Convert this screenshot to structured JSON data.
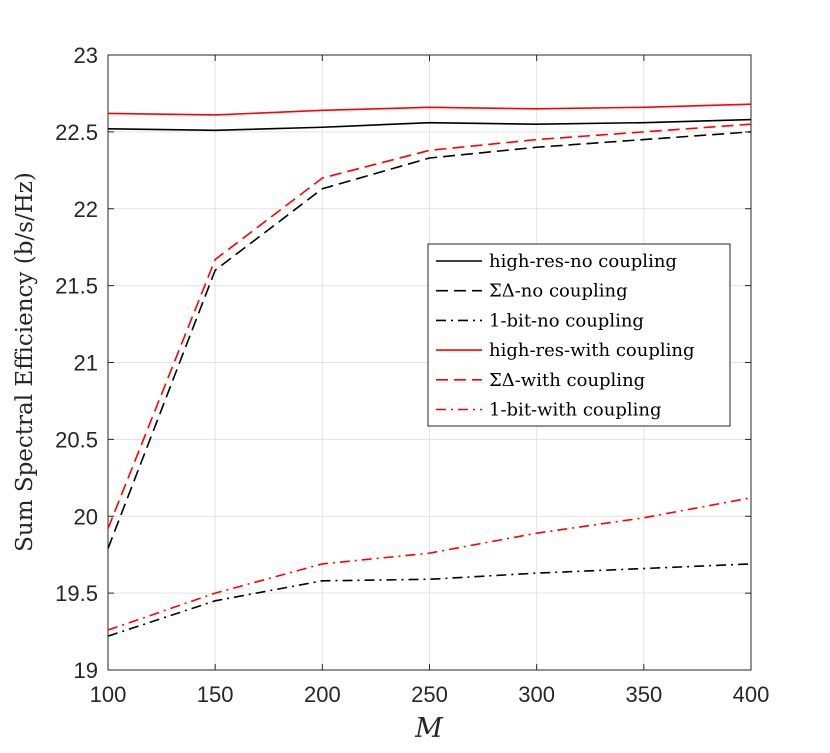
{
  "chart_data": {
    "type": "line",
    "title": "",
    "xlabel": "M",
    "ylabel": "Sum Spectral Efficiency (b/s/Hz)",
    "xlim": [
      100,
      400
    ],
    "ylim": [
      19,
      23
    ],
    "grid": true,
    "legend_position": "center-right",
    "x": [
      100,
      150,
      200,
      250,
      300,
      350,
      400
    ],
    "x_tick_labels": [
      "100",
      "150",
      "200",
      "250",
      "300",
      "350",
      "400"
    ],
    "y_tick_labels": [
      "19",
      "19.5",
      "20",
      "20.5",
      "21",
      "21.5",
      "22",
      "22.5",
      "23"
    ],
    "series": [
      {
        "name": "high-res-no coupling",
        "color": "#000000",
        "dash": "solid",
        "values": [
          22.52,
          22.51,
          22.53,
          22.56,
          22.55,
          22.56,
          22.58
        ]
      },
      {
        "name": "ΣΔ-no coupling",
        "color": "#000000",
        "dash": "dashed",
        "values": [
          19.79,
          21.6,
          22.13,
          22.33,
          22.4,
          22.45,
          22.5
        ]
      },
      {
        "name": "1-bit-no coupling",
        "color": "#000000",
        "dash": "dashdot",
        "values": [
          19.22,
          19.45,
          19.58,
          19.59,
          19.63,
          19.66,
          19.69
        ]
      },
      {
        "name": "high-res-with coupling",
        "color": "#ff0000",
        "dash": "solid",
        "values": [
          22.62,
          22.61,
          22.64,
          22.66,
          22.65,
          22.66,
          22.68
        ]
      },
      {
        "name": "ΣΔ-with coupling",
        "color": "#ff0000",
        "dash": "dashed",
        "values": [
          19.92,
          21.67,
          22.2,
          22.38,
          22.45,
          22.5,
          22.55
        ]
      },
      {
        "name": "1-bit-with coupling",
        "color": "#ff0000",
        "dash": "dashdot",
        "values": [
          19.26,
          19.5,
          19.69,
          19.76,
          19.89,
          19.99,
          20.12
        ]
      }
    ]
  }
}
